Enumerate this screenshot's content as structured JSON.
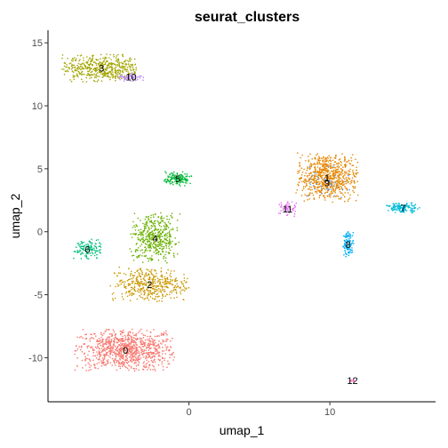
{
  "chart_data": {
    "type": "scatter",
    "title": "seurat_clusters",
    "xlabel": "umap_1",
    "ylabel": "umap_2",
    "xlim": [
      -10,
      17.5
    ],
    "ylim": [
      -13.5,
      16
    ],
    "xticks": [
      0,
      10
    ],
    "yticks": [
      -10,
      -5,
      0,
      5,
      10,
      15
    ],
    "xtick_labels": [
      "0",
      "10"
    ],
    "ytick_labels": [
      "-10",
      "-5",
      "0",
      "5",
      "10",
      "15"
    ],
    "grid": false,
    "legend": "none",
    "clusters": [
      {
        "label": "0",
        "color": "#F8766D",
        "center": [
          -4.5,
          -9.4
        ],
        "spread": [
          3.6,
          1.7
        ],
        "n": 900
      },
      {
        "label": "1",
        "color": "#E58700",
        "center": [
          9.8,
          4.3
        ],
        "spread": [
          2.2,
          2.0
        ],
        "n": 700
      },
      {
        "label": "2",
        "color": "#C99800",
        "center": [
          -2.8,
          -4.2
        ],
        "spread": [
          2.8,
          1.4
        ],
        "n": 420
      },
      {
        "label": "3",
        "color": "#A3A500",
        "center": [
          -6.2,
          13.0
        ],
        "spread": [
          2.8,
          1.1
        ],
        "n": 480
      },
      {
        "label": "4",
        "color": "#6BB100",
        "center": [
          -2.4,
          -0.5
        ],
        "spread": [
          1.8,
          2.0
        ],
        "n": 450
      },
      {
        "label": "5",
        "color": "#00BA38",
        "center": [
          -0.8,
          4.2
        ],
        "spread": [
          1.0,
          0.6
        ],
        "n": 140
      },
      {
        "label": "6",
        "color": "#00BF7D",
        "center": [
          -7.2,
          -1.4
        ],
        "spread": [
          1.0,
          0.8
        ],
        "n": 120
      },
      {
        "label": "7",
        "color": "#00BCD8",
        "center": [
          15.2,
          1.9
        ],
        "spread": [
          1.2,
          0.4
        ],
        "n": 130
      },
      {
        "label": "8",
        "color": "#00B0F6",
        "center": [
          11.3,
          -1.0
        ],
        "spread": [
          0.4,
          1.0
        ],
        "n": 100
      },
      {
        "label": "9",
        "color": "#619CFF",
        "center": [
          9.8,
          3.9
        ],
        "spread": [
          1.8,
          1.4
        ],
        "n": 40
      },
      {
        "label": "10",
        "color": "#B983FF",
        "center": [
          -4.1,
          12.3
        ],
        "spread": [
          0.9,
          0.4
        ],
        "n": 50
      },
      {
        "label": "11",
        "color": "#E76BF3",
        "center": [
          7.0,
          1.8
        ],
        "spread": [
          0.8,
          0.6
        ],
        "n": 50
      },
      {
        "label": "12",
        "color": "#FF62BC",
        "center": [
          11.6,
          -11.8
        ],
        "spread": [
          0.2,
          0.15
        ],
        "n": 8
      }
    ]
  }
}
